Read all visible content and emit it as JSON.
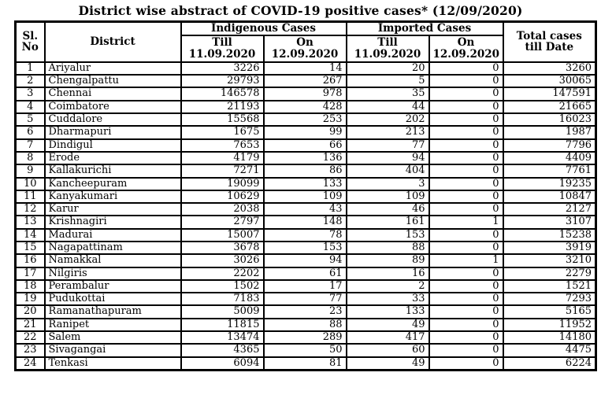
{
  "page": {
    "title": "District wise abstract of COVID-19 positive cases* (12/09/2020)"
  },
  "table": {
    "headers": {
      "sl_no": "Sl.\nNo",
      "district": "District",
      "indigenous_cases": "Indigenous Cases",
      "imported_cases": "Imported Cases",
      "indigenous_till": "Till\n11.09.2020",
      "indigenous_on": "On\n12.09.2020",
      "imported_till": "Till\n11.09.2020",
      "imported_on": "On\n12.09.2020",
      "total": "Total cases\ntill Date"
    },
    "rows": [
      {
        "sl_no": "1",
        "district": "Ariyalur",
        "indigenous_till": "3226",
        "indigenous_on": "14",
        "imported_till": "20",
        "imported_on": "0",
        "total": "3260"
      },
      {
        "sl_no": "2",
        "district": "Chengalpattu",
        "indigenous_till": "29793",
        "indigenous_on": "267",
        "imported_till": "5",
        "imported_on": "0",
        "total": "30065"
      },
      {
        "sl_no": "3",
        "district": "Chennai",
        "indigenous_till": "146578",
        "indigenous_on": "978",
        "imported_till": "35",
        "imported_on": "0",
        "total": "147591"
      },
      {
        "sl_no": "4",
        "district": "Coimbatore",
        "indigenous_till": "21193",
        "indigenous_on": "428",
        "imported_till": "44",
        "imported_on": "0",
        "total": "21665"
      },
      {
        "sl_no": "5",
        "district": "Cuddalore",
        "indigenous_till": "15568",
        "indigenous_on": "253",
        "imported_till": "202",
        "imported_on": "0",
        "total": "16023"
      },
      {
        "sl_no": "6",
        "district": "Dharmapuri",
        "indigenous_till": "1675",
        "indigenous_on": "99",
        "imported_till": "213",
        "imported_on": "0",
        "total": "1987"
      },
      {
        "sl_no": "7",
        "district": "Dindigul",
        "indigenous_till": "7653",
        "indigenous_on": "66",
        "imported_till": "77",
        "imported_on": "0",
        "total": "7796"
      },
      {
        "sl_no": "8",
        "district": "Erode",
        "indigenous_till": "4179",
        "indigenous_on": "136",
        "imported_till": "94",
        "imported_on": "0",
        "total": "4409"
      },
      {
        "sl_no": "9",
        "district": "Kallakurichi",
        "indigenous_till": "7271",
        "indigenous_on": "86",
        "imported_till": "404",
        "imported_on": "0",
        "total": "7761"
      },
      {
        "sl_no": "10",
        "district": "Kancheepuram",
        "indigenous_till": "19099",
        "indigenous_on": "133",
        "imported_till": "3",
        "imported_on": "0",
        "total": "19235"
      },
      {
        "sl_no": "11",
        "district": "Kanyakumari",
        "indigenous_till": "10629",
        "indigenous_on": "109",
        "imported_till": "109",
        "imported_on": "0",
        "total": "10847"
      },
      {
        "sl_no": "12",
        "district": "Karur",
        "indigenous_till": "2038",
        "indigenous_on": "43",
        "imported_till": "46",
        "imported_on": "0",
        "total": "2127"
      },
      {
        "sl_no": "13",
        "district": "Krishnagiri",
        "indigenous_till": "2797",
        "indigenous_on": "148",
        "imported_till": "161",
        "imported_on": "1",
        "total": "3107"
      },
      {
        "sl_no": "14",
        "district": "Madurai",
        "indigenous_till": "15007",
        "indigenous_on": "78",
        "imported_till": "153",
        "imported_on": "0",
        "total": "15238"
      },
      {
        "sl_no": "15",
        "district": "Nagapattinam",
        "indigenous_till": "3678",
        "indigenous_on": "153",
        "imported_till": "88",
        "imported_on": "0",
        "total": "3919"
      },
      {
        "sl_no": "16",
        "district": "Namakkal",
        "indigenous_till": "3026",
        "indigenous_on": "94",
        "imported_till": "89",
        "imported_on": "1",
        "total": "3210"
      },
      {
        "sl_no": "17",
        "district": "Nilgiris",
        "indigenous_till": "2202",
        "indigenous_on": "61",
        "imported_till": "16",
        "imported_on": "0",
        "total": "2279"
      },
      {
        "sl_no": "18",
        "district": "Perambalur",
        "indigenous_till": "1502",
        "indigenous_on": "17",
        "imported_till": "2",
        "imported_on": "0",
        "total": "1521"
      },
      {
        "sl_no": "19",
        "district": "Pudukottai",
        "indigenous_till": "7183",
        "indigenous_on": "77",
        "imported_till": "33",
        "imported_on": "0",
        "total": "7293"
      },
      {
        "sl_no": "20",
        "district": "Ramanathapuram",
        "indigenous_till": "5009",
        "indigenous_on": "23",
        "imported_till": "133",
        "imported_on": "0",
        "total": "5165"
      },
      {
        "sl_no": "21",
        "district": "Ranipet",
        "indigenous_till": "11815",
        "indigenous_on": "88",
        "imported_till": "49",
        "imported_on": "0",
        "total": "11952"
      },
      {
        "sl_no": "22",
        "district": "Salem",
        "indigenous_till": "13474",
        "indigenous_on": "289",
        "imported_till": "417",
        "imported_on": "0",
        "total": "14180"
      },
      {
        "sl_no": "23",
        "district": "Sivagangai",
        "indigenous_till": "4365",
        "indigenous_on": "50",
        "imported_till": "60",
        "imported_on": "0",
        "total": "4475"
      },
      {
        "sl_no": "24",
        "district": "Tenkasi",
        "indigenous_till": "6094",
        "indigenous_on": "81",
        "imported_till": "49",
        "imported_on": "0",
        "total": "6224"
      }
    ]
  }
}
